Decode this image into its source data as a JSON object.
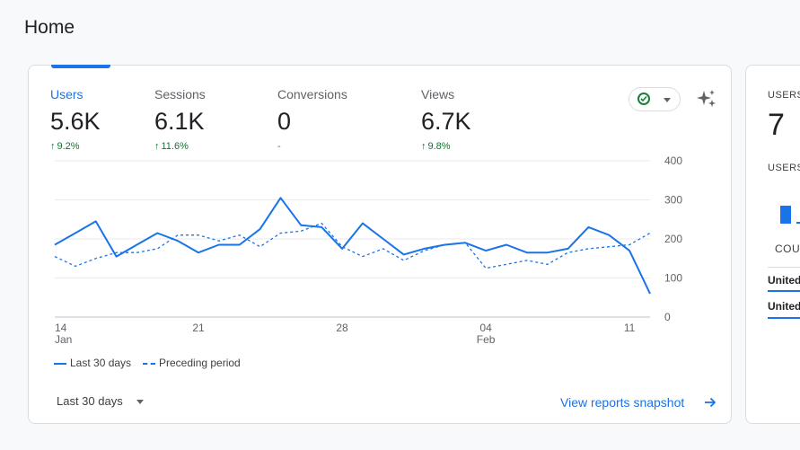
{
  "page": {
    "title": "Home"
  },
  "metrics": [
    {
      "label": "Users",
      "value": "5.6K",
      "delta": "9.2%",
      "arrow": "↑",
      "active": true
    },
    {
      "label": "Sessions",
      "value": "6.1K",
      "delta": "11.6%",
      "arrow": "↑",
      "active": false
    },
    {
      "label": "Conversions",
      "value": "0",
      "delta": "-",
      "arrow": "",
      "active": false
    },
    {
      "label": "Views",
      "value": "6.7K",
      "delta": "9.8%",
      "arrow": "↑",
      "active": false
    }
  ],
  "icons": {
    "status": "check-circle-icon",
    "dropdown": "chevron-down-icon",
    "insights": "sparkle-icon",
    "view": "arrow-right-icon"
  },
  "colors": {
    "accent": "#1a73e8",
    "positive": "#137333",
    "status": "#188038"
  },
  "chart_data": {
    "type": "line",
    "x_ticks": [
      {
        "day": 0,
        "label": "14",
        "sublabel": "Jan"
      },
      {
        "day": 7,
        "label": "21",
        "sublabel": ""
      },
      {
        "day": 14,
        "label": "28",
        "sublabel": ""
      },
      {
        "day": 21,
        "label": "04",
        "sublabel": "Feb"
      },
      {
        "day": 28,
        "label": "11",
        "sublabel": ""
      }
    ],
    "y_ticks": [
      0,
      100,
      200,
      300,
      400
    ],
    "ylim": [
      0,
      400
    ],
    "grid": true,
    "legend_position": "bottom-left",
    "series": [
      {
        "name": "Last 30 days",
        "style": "solid",
        "values": [
          185,
          215,
          245,
          155,
          185,
          215,
          195,
          165,
          185,
          185,
          225,
          305,
          235,
          230,
          175,
          240,
          200,
          160,
          175,
          185,
          190,
          170,
          185,
          165,
          165,
          175,
          230,
          210,
          170,
          60
        ]
      },
      {
        "name": "Preceding period",
        "style": "dashed",
        "values": [
          155,
          130,
          150,
          165,
          165,
          175,
          210,
          210,
          195,
          210,
          180,
          215,
          220,
          240,
          180,
          155,
          175,
          145,
          170,
          185,
          190,
          125,
          135,
          145,
          135,
          165,
          175,
          180,
          185,
          215
        ]
      }
    ]
  },
  "footer": {
    "range": "Last 30 days",
    "link": "View reports snapshot"
  },
  "side_card": {
    "users_label": "USERS",
    "users_value": "7",
    "users_label2": "USERS",
    "country_header": "COU",
    "rows": [
      "United",
      "United"
    ]
  }
}
